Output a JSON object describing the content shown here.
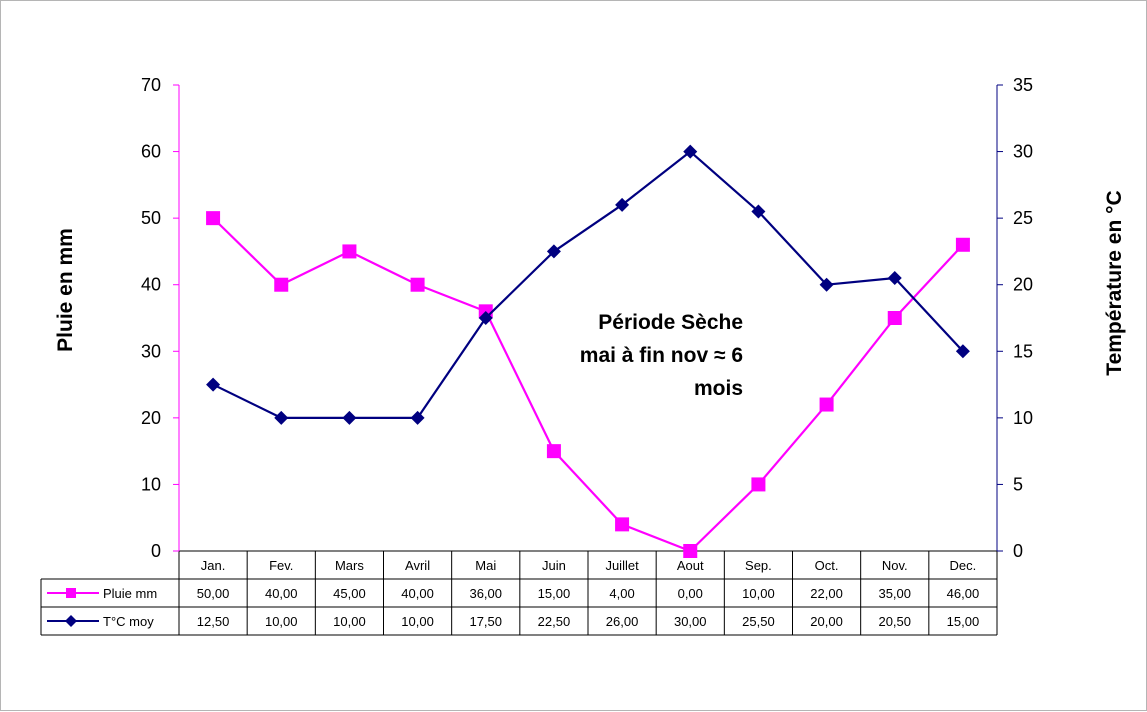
{
  "chart_data": {
    "type": "line",
    "categories": [
      "Jan.",
      "Fev.",
      "Mars",
      "Avril",
      "Mai",
      "Juin",
      "Juillet",
      "Aout",
      "Sep.",
      "Oct.",
      "Nov.",
      "Dec."
    ],
    "series": [
      {
        "name": "Pluie mm",
        "axis": "left",
        "color": "#ff00ff",
        "marker": "square",
        "values": [
          50,
          40,
          45,
          40,
          36,
          15,
          4,
          0,
          10,
          22,
          35,
          46
        ],
        "labels": [
          "50,00",
          "40,00",
          "45,00",
          "40,00",
          "36,00",
          "15,00",
          "4,00",
          "0,00",
          "10,00",
          "22,00",
          "35,00",
          "46,00"
        ]
      },
      {
        "name": "T°C moy",
        "axis": "right",
        "color": "#000080",
        "marker": "diamond",
        "values": [
          12.5,
          10,
          10,
          10,
          17.5,
          22.5,
          26,
          30,
          25.5,
          20,
          20.5,
          15
        ],
        "labels": [
          "12,50",
          "10,00",
          "10,00",
          "10,00",
          "17,50",
          "22,50",
          "26,00",
          "30,00",
          "25,50",
          "20,00",
          "20,50",
          "15,00"
        ]
      }
    ],
    "ylabel": "Pluie en mm",
    "ylabel_right": "Température en °C",
    "ylim": [
      0,
      70
    ],
    "ylim_right": [
      0,
      35
    ],
    "yticks": [
      "0",
      "10",
      "20",
      "30",
      "40",
      "50",
      "60",
      "70"
    ],
    "yticks_right": [
      "0",
      "5",
      "10",
      "15",
      "20",
      "25",
      "30",
      "35"
    ],
    "annotation": [
      "Période Sèche",
      "mai à fin nov ≈ 6",
      "mois"
    ],
    "legend": "data-table",
    "grid": false
  }
}
